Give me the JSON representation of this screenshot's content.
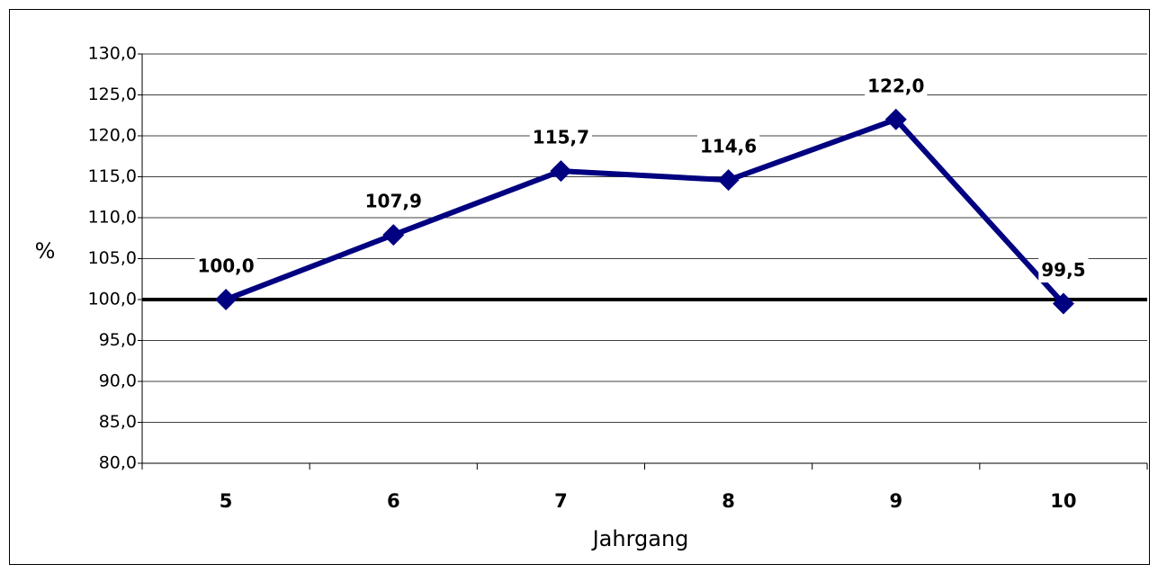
{
  "chart_data": {
    "type": "line",
    "categories": [
      "5",
      "6",
      "7",
      "8",
      "9",
      "10"
    ],
    "series": [
      {
        "name": "Jahrgang",
        "color": "#000080",
        "values": [
          100.0,
          107.9,
          115.7,
          114.6,
          122.0,
          99.5
        ],
        "value_labels": [
          "100,0",
          "107,9",
          "115,7",
          "114,6",
          "122,0",
          "99,5"
        ]
      }
    ],
    "ylim": [
      80,
      130
    ],
    "yticks": [
      {
        "value": 80,
        "label": "80,0"
      },
      {
        "value": 85,
        "label": "85,0"
      },
      {
        "value": 90,
        "label": "90,0"
      },
      {
        "value": 95,
        "label": "95,0"
      },
      {
        "value": 100,
        "label": "100,0"
      },
      {
        "value": 105,
        "label": "105,0"
      },
      {
        "value": 110,
        "label": "110,0"
      },
      {
        "value": 115,
        "label": "115,0"
      },
      {
        "value": 120,
        "label": "120,0"
      },
      {
        "value": 125,
        "label": "125,0"
      },
      {
        "value": 130,
        "label": "130,0"
      }
    ],
    "ylabel": "%",
    "xlabel": "Jahrgang",
    "grid": true,
    "reference_line": {
      "value": 100,
      "color": "#000000"
    }
  }
}
